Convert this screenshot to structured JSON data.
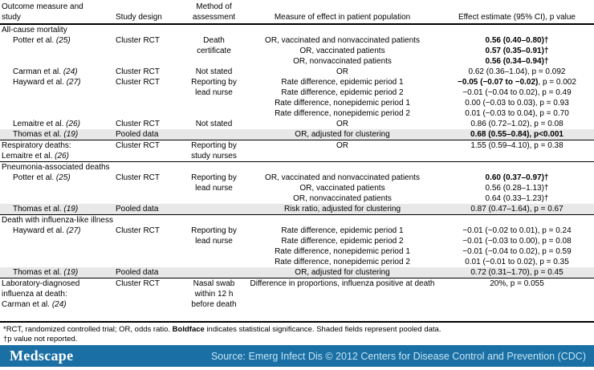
{
  "table": {
    "headers": [
      "Outcome measure and\nstudy",
      "Study design",
      "Method of\nassessment",
      "Measure of effect in patient population",
      "Effect estimate (95% CI), p value"
    ],
    "s1": {
      "title": "All-cause mortality",
      "g1": {
        "study": "Potter et al.",
        "ref": "(25)",
        "design": "Cluster RCT",
        "method": "Death\ncertificate",
        "r1": {
          "measure": "OR, vaccinated and nonvaccinated patients",
          "b": "0.56 (0.40–0.80)†",
          "n": ""
        },
        "r2": {
          "measure": "OR, vaccinated patients",
          "b": "0.57 (0.35–0.91)†",
          "n": ""
        },
        "r3": {
          "measure": "OR, nonvaccinated patients",
          "b": "0.56 (0.34–0.94)†",
          "n": ""
        }
      },
      "g2": {
        "study": "Carman et al.",
        "ref": "(24)",
        "design": "Cluster RCT",
        "method": "Not stated",
        "r1": {
          "measure": "OR",
          "b": "",
          "n": "0.62 (0.36–1.04), p = 0.092"
        }
      },
      "g3": {
        "study": "Hayward et al.",
        "ref": "(27)",
        "design": "Cluster RCT",
        "method": "Reporting by\nlead nurse",
        "r1": {
          "measure": "Rate difference, epidemic period 1",
          "b": "−0.05 (−0.07 to −0.02)",
          "n": ", p = 0.002"
        },
        "r2": {
          "measure": "Rate difference, epidemic period 2",
          "b": "",
          "n": "−0.01 (−0.04 to 0.02), p = 0.49"
        },
        "r3": {
          "measure": "Rate difference, nonepidemic period 1",
          "b": "",
          "n": "0.00 (−0.03 to 0.03), p = 0.93"
        },
        "r4": {
          "measure": "Rate difference, nonepidemic period 2",
          "b": "",
          "n": "0.01 (−0.03 to 0.04), p = 0.70"
        }
      },
      "g4": {
        "study": "Lemaitre et al.",
        "ref": "(26)",
        "design": "Cluster RCT",
        "method": "Not stated",
        "r1": {
          "measure": "OR",
          "b": "",
          "n": "0.86 (0.72–1.02), p = 0.08"
        }
      },
      "g5": {
        "study": "Thomas et al.",
        "ref": "(19)",
        "design": "Pooled data",
        "method": "",
        "r1": {
          "measure": "OR, adjusted for clustering",
          "b": "0.68 (0.55–0.84), p<0.001",
          "n": ""
        }
      }
    },
    "s2": {
      "title": "Respiratory deaths:",
      "study": "Lemaitre et al.",
      "ref": "(26)",
      "design": "Cluster RCT",
      "method": "Reporting by\nstudy nurses",
      "r1": {
        "measure": "OR",
        "b": "",
        "n": "1.55 (0.59–4.10), p = 0.38"
      }
    },
    "s3": {
      "title": "Pneumonia-associated deaths",
      "g1": {
        "study": "Potter et al.",
        "ref": "(25)",
        "design": "Cluster RCT",
        "method": "Reporting by\nlead nurse",
        "r1": {
          "measure": "OR, vaccinated and nonvaccinated patients",
          "b": "0.60 (0.37–0.97)†",
          "n": ""
        },
        "r2": {
          "measure": "OR, vaccinated patients",
          "b": "",
          "n": "0.56 (0.28–1.13)†"
        },
        "r3": {
          "measure": "OR, nonvaccinated patients",
          "b": "",
          "n": "0.64 (0.33–1.23)†"
        }
      },
      "g2": {
        "study": "Thomas et al.",
        "ref": "(19)",
        "design": "Pooled data",
        "method": "",
        "r1": {
          "measure": "Risk ratio, adjusted for clustering",
          "b": "",
          "n": "0.87 (0.47–1.64), p = 0.67"
        }
      }
    },
    "s4": {
      "title": "Death with influenza-like illness",
      "g1": {
        "study": "Hayward et al.",
        "ref": "(27)",
        "design": "Cluster RCT",
        "method": "Reporting by\nlead nurse",
        "r1": {
          "measure": "Rate difference, epidemic period 1",
          "b": "",
          "n": "−0.01 (−0.02 to 0.01), p = 0.24"
        },
        "r2": {
          "measure": "Rate difference, epidemic period 2",
          "b": "",
          "n": "−0.01 (−0.03 to 0.00), p = 0.08"
        },
        "r3": {
          "measure": "Rate difference, nonepidemic period 1",
          "b": "",
          "n": "−0.01 (−0.04 to 0.02), p = 0.59"
        },
        "r4": {
          "measure": "Rate difference, nonepidemic period 2",
          "b": "",
          "n": "0.01 (−0.01 to 0.02), p = 0.35"
        }
      },
      "g2": {
        "study": "Thomas et al.",
        "ref": "(19)",
        "design": "Pooled data",
        "method": "",
        "r1": {
          "measure": "OR, adjusted for clustering",
          "b": "",
          "n": "0.72 (0.31–1.70), p = 0.45"
        }
      }
    },
    "s5": {
      "title": "Laboratory-diagnosed influenza at death:",
      "study": "Carman et al.",
      "ref": "(24)",
      "design": "Cluster RCT",
      "method": "Nasal swab\nwithin 12 h\nbefore death",
      "r1": {
        "measure": "Difference in proportions, influenza positive at death",
        "b": "",
        "n": "20%, p = 0.055"
      }
    }
  },
  "footnotes": {
    "f1_pre": "*RCT, randomized controlled trial; OR, odds ratio. ",
    "f1_bold": "Boldface",
    "f1_post": " indicates statistical significance. Shaded fields represent pooled data.",
    "f2": "†p value not reported."
  },
  "footer": {
    "logo": "Medscape",
    "source": "Source: Emerg Infect Dis © 2012 Centers for Disease Control and Prevention (CDC)"
  },
  "colors": {
    "bar": "#1A6FA4",
    "bar_text": "#C6E6F5",
    "pooled_shade": "#E8E8E8"
  }
}
